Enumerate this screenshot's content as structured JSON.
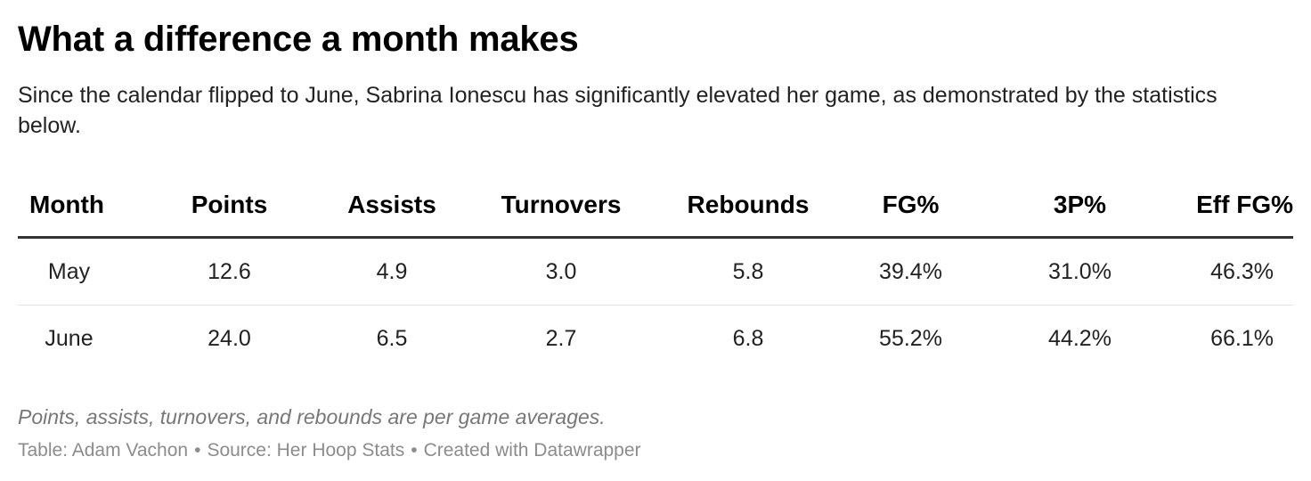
{
  "title": "What a difference a month makes",
  "subtitle": "Since the calendar flipped to June, Sabrina Ionescu has significantly elevated her game, as demonstrated by the statistics below.",
  "chart_data": {
    "type": "table",
    "columns": [
      "Month",
      "Points",
      "Assists",
      "Turnovers",
      "Rebounds",
      "FG%",
      "3P%",
      "Eff FG%"
    ],
    "rows": [
      [
        "May",
        "12.6",
        "4.9",
        "3.0",
        "5.8",
        "39.4%",
        "31.0%",
        "46.3%"
      ],
      [
        "June",
        "24.0",
        "6.5",
        "2.7",
        "6.8",
        "55.2%",
        "44.2%",
        "66.1%"
      ]
    ]
  },
  "notes": "Points, assists, turnovers, and rebounds are per game averages.",
  "credits": {
    "table": "Table: Adam Vachon",
    "separator": "•",
    "source": "Source: Her Hoop Stats",
    "created": "Created with Datawrapper"
  }
}
